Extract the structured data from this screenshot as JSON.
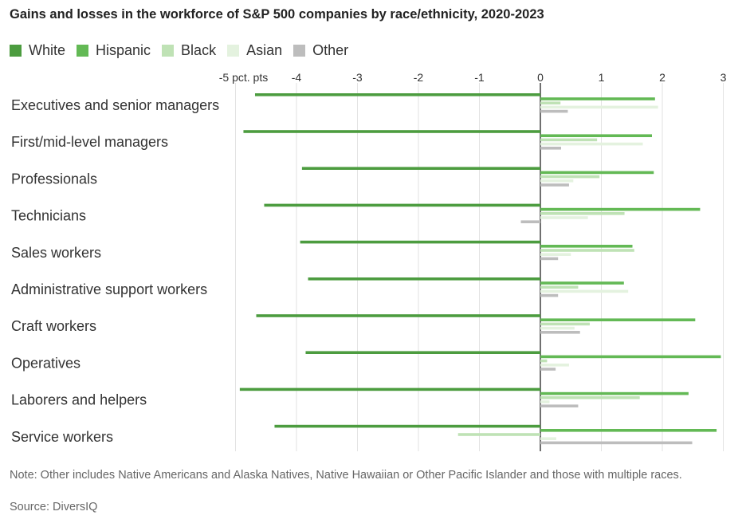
{
  "chart_data": {
    "type": "bar",
    "orientation": "horizontal",
    "title": "Gains and losses in the workforce of S&P 500 companies by race/ethnicity, 2020-2023",
    "xlabel": "",
    "ylabel": "",
    "xlim": [
      -5,
      3
    ],
    "x_ticks": [
      -5,
      -4,
      -3,
      -2,
      -1,
      0,
      1,
      2,
      3
    ],
    "x_tick_labels": [
      "-5 pct. pts",
      "-4",
      "-3",
      "-2",
      "-1",
      "0",
      "1",
      "2",
      "3"
    ],
    "grid": true,
    "legend_position": "top-left",
    "categories": [
      "Executives and senior managers",
      "First/mid-level managers",
      "Professionals",
      "Technicians",
      "Sales workers",
      "Administrative support workers",
      "Craft workers",
      "Operatives",
      "Laborers and helpers",
      "Service workers"
    ],
    "series": [
      {
        "name": "White",
        "color": "#4c9c3f",
        "values": [
          -4.68,
          -4.87,
          -3.91,
          -4.53,
          -3.94,
          -3.81,
          -4.66,
          -3.85,
          -4.93,
          -4.36
        ]
      },
      {
        "name": "Hispanic",
        "color": "#63b955",
        "values": [
          1.88,
          1.83,
          1.86,
          2.62,
          1.51,
          1.37,
          2.54,
          2.96,
          2.43,
          2.89
        ]
      },
      {
        "name": "Black",
        "color": "#bfe2b5",
        "values": [
          0.33,
          0.93,
          0.97,
          1.38,
          1.54,
          0.62,
          0.81,
          0.11,
          1.63,
          -1.35
        ]
      },
      {
        "name": "Asian",
        "color": "#e4f2df",
        "values": [
          1.93,
          1.68,
          0.54,
          0.78,
          0.5,
          1.44,
          0.56,
          0.47,
          0.15,
          0.26
        ]
      },
      {
        "name": "Other",
        "color": "#bdbdbd",
        "values": [
          0.45,
          0.34,
          0.47,
          -0.32,
          0.29,
          0.29,
          0.65,
          0.25,
          0.62,
          2.49
        ]
      }
    ]
  },
  "footer": {
    "note": "Note: Other includes Native Americans and Alaska Natives, Native Hawaiian or Other Pacific Islander and those with multiple races.",
    "source": "Source: DiversIQ"
  }
}
